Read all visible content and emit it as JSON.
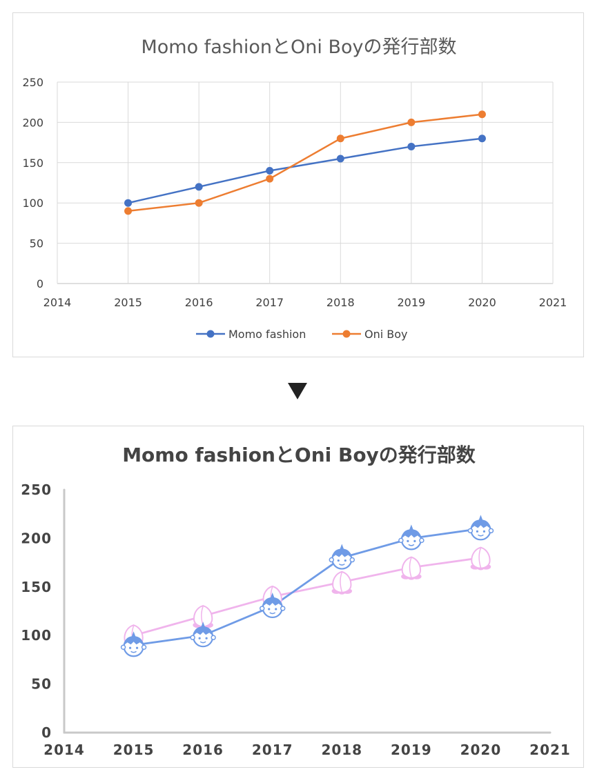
{
  "chart_data": [
    {
      "type": "line",
      "title": "Momo fashionとOni Boyの発行部数",
      "x": [
        2015,
        2016,
        2017,
        2018,
        2019,
        2020
      ],
      "x_ticks": [
        "2014",
        "2015",
        "2016",
        "2017",
        "2018",
        "2019",
        "2020",
        "2021"
      ],
      "y_ticks": [
        "0",
        "50",
        "100",
        "150",
        "200",
        "250"
      ],
      "xlim": [
        2014,
        2021
      ],
      "ylim": [
        0,
        250
      ],
      "grid": true,
      "legend_position": "bottom",
      "series": [
        {
          "name": "Momo fashion",
          "color": "#4472c4",
          "values": [
            100,
            120,
            140,
            155,
            170,
            180
          ]
        },
        {
          "name": "Oni Boy",
          "color": "#ed7d31",
          "values": [
            90,
            100,
            130,
            180,
            200,
            210
          ]
        }
      ]
    },
    {
      "type": "line",
      "title": "Momo fashionとOni Boyの発行部数",
      "x": [
        2015,
        2016,
        2017,
        2018,
        2019,
        2020
      ],
      "x_ticks": [
        "2014",
        "2015",
        "2016",
        "2017",
        "2018",
        "2019",
        "2020",
        "2021"
      ],
      "y_ticks": [
        "0",
        "50",
        "100",
        "150",
        "200",
        "250"
      ],
      "xlim": [
        2014,
        2021
      ],
      "ylim": [
        0,
        250
      ],
      "grid": false,
      "series": [
        {
          "color": "#f0b4ec",
          "marker": "peach-icon",
          "values": [
            100,
            120,
            140,
            155,
            170,
            180
          ]
        },
        {
          "color": "#6f9be6",
          "marker": "oni-boy-icon",
          "values": [
            90,
            100,
            130,
            180,
            200,
            210
          ]
        }
      ]
    }
  ]
}
